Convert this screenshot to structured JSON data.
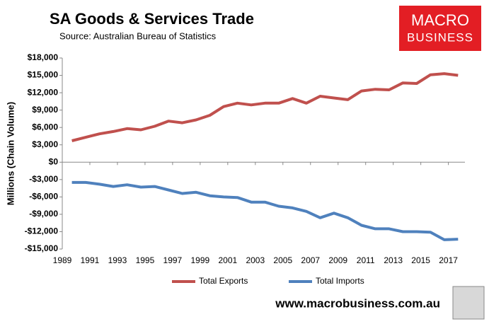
{
  "chart_data": {
    "type": "line",
    "title": "SA Goods & Services Trade",
    "subtitle": "Source:  Australian Bureau of Statistics",
    "ylabel": "Millions (Chain Volume)",
    "logo": [
      "MACRO",
      "BUSINESS"
    ],
    "footer": "www.macrobusiness.com.au",
    "x": [
      1989.7,
      1990.7,
      1991.7,
      1992.7,
      1993.7,
      1994.7,
      1995.7,
      1996.7,
      1997.7,
      1998.7,
      1999.7,
      2000.7,
      2001.7,
      2002.7,
      2003.7,
      2004.7,
      2005.7,
      2006.7,
      2007.7,
      2008.7,
      2009.7,
      2010.7,
      2011.7,
      2012.7,
      2013.7,
      2014.7,
      2015.7,
      2016.7,
      2017.7
    ],
    "series": [
      {
        "name": "Total Exports",
        "color": "#c0504d",
        "values": [
          3700,
          4300,
          4900,
          5300,
          5800,
          5600,
          6200,
          7100,
          6800,
          7300,
          8100,
          9600,
          10200,
          9900,
          10200,
          10200,
          11000,
          10200,
          11400,
          11100,
          10800,
          12300,
          12600,
          12500,
          13700,
          13600,
          15100,
          15300,
          15000
        ]
      },
      {
        "name": "Total Imports",
        "color": "#4f81bd",
        "values": [
          -3500,
          -3500,
          -3800,
          -4200,
          -3900,
          -4300,
          -4200,
          -4800,
          -5400,
          -5200,
          -5800,
          -6000,
          -6100,
          -6900,
          -6900,
          -7600,
          -7900,
          -8500,
          -9600,
          -8800,
          -9600,
          -10900,
          -11500,
          -11500,
          -12000,
          -12000,
          -12100,
          -13400,
          -13300
        ]
      }
    ],
    "xlim": [
      1989,
      2018.2
    ],
    "xticks": [
      1989,
      1991,
      1993,
      1995,
      1997,
      1999,
      2001,
      2003,
      2005,
      2007,
      2009,
      2011,
      2013,
      2015,
      2017
    ],
    "ylim": [
      -15000,
      18000
    ],
    "yticks": [
      {
        "value": -15000,
        "label": "-$15,000"
      },
      {
        "value": -12000,
        "label": "-$12,000"
      },
      {
        "value": -9000,
        "label": "-$9,000"
      },
      {
        "value": -6000,
        "label": "-$6,000"
      },
      {
        "value": -3000,
        "label": "-$3,000"
      },
      {
        "value": 0,
        "label": "$0"
      },
      {
        "value": 3000,
        "label": "$3,000"
      },
      {
        "value": 6000,
        "label": "$6,000"
      },
      {
        "value": 9000,
        "label": "$9,000"
      },
      {
        "value": 12000,
        "label": "$12,000"
      },
      {
        "value": 15000,
        "label": "$15,000"
      },
      {
        "value": 18000,
        "label": "$18,000"
      }
    ],
    "grid": false,
    "legend": "bottom"
  }
}
